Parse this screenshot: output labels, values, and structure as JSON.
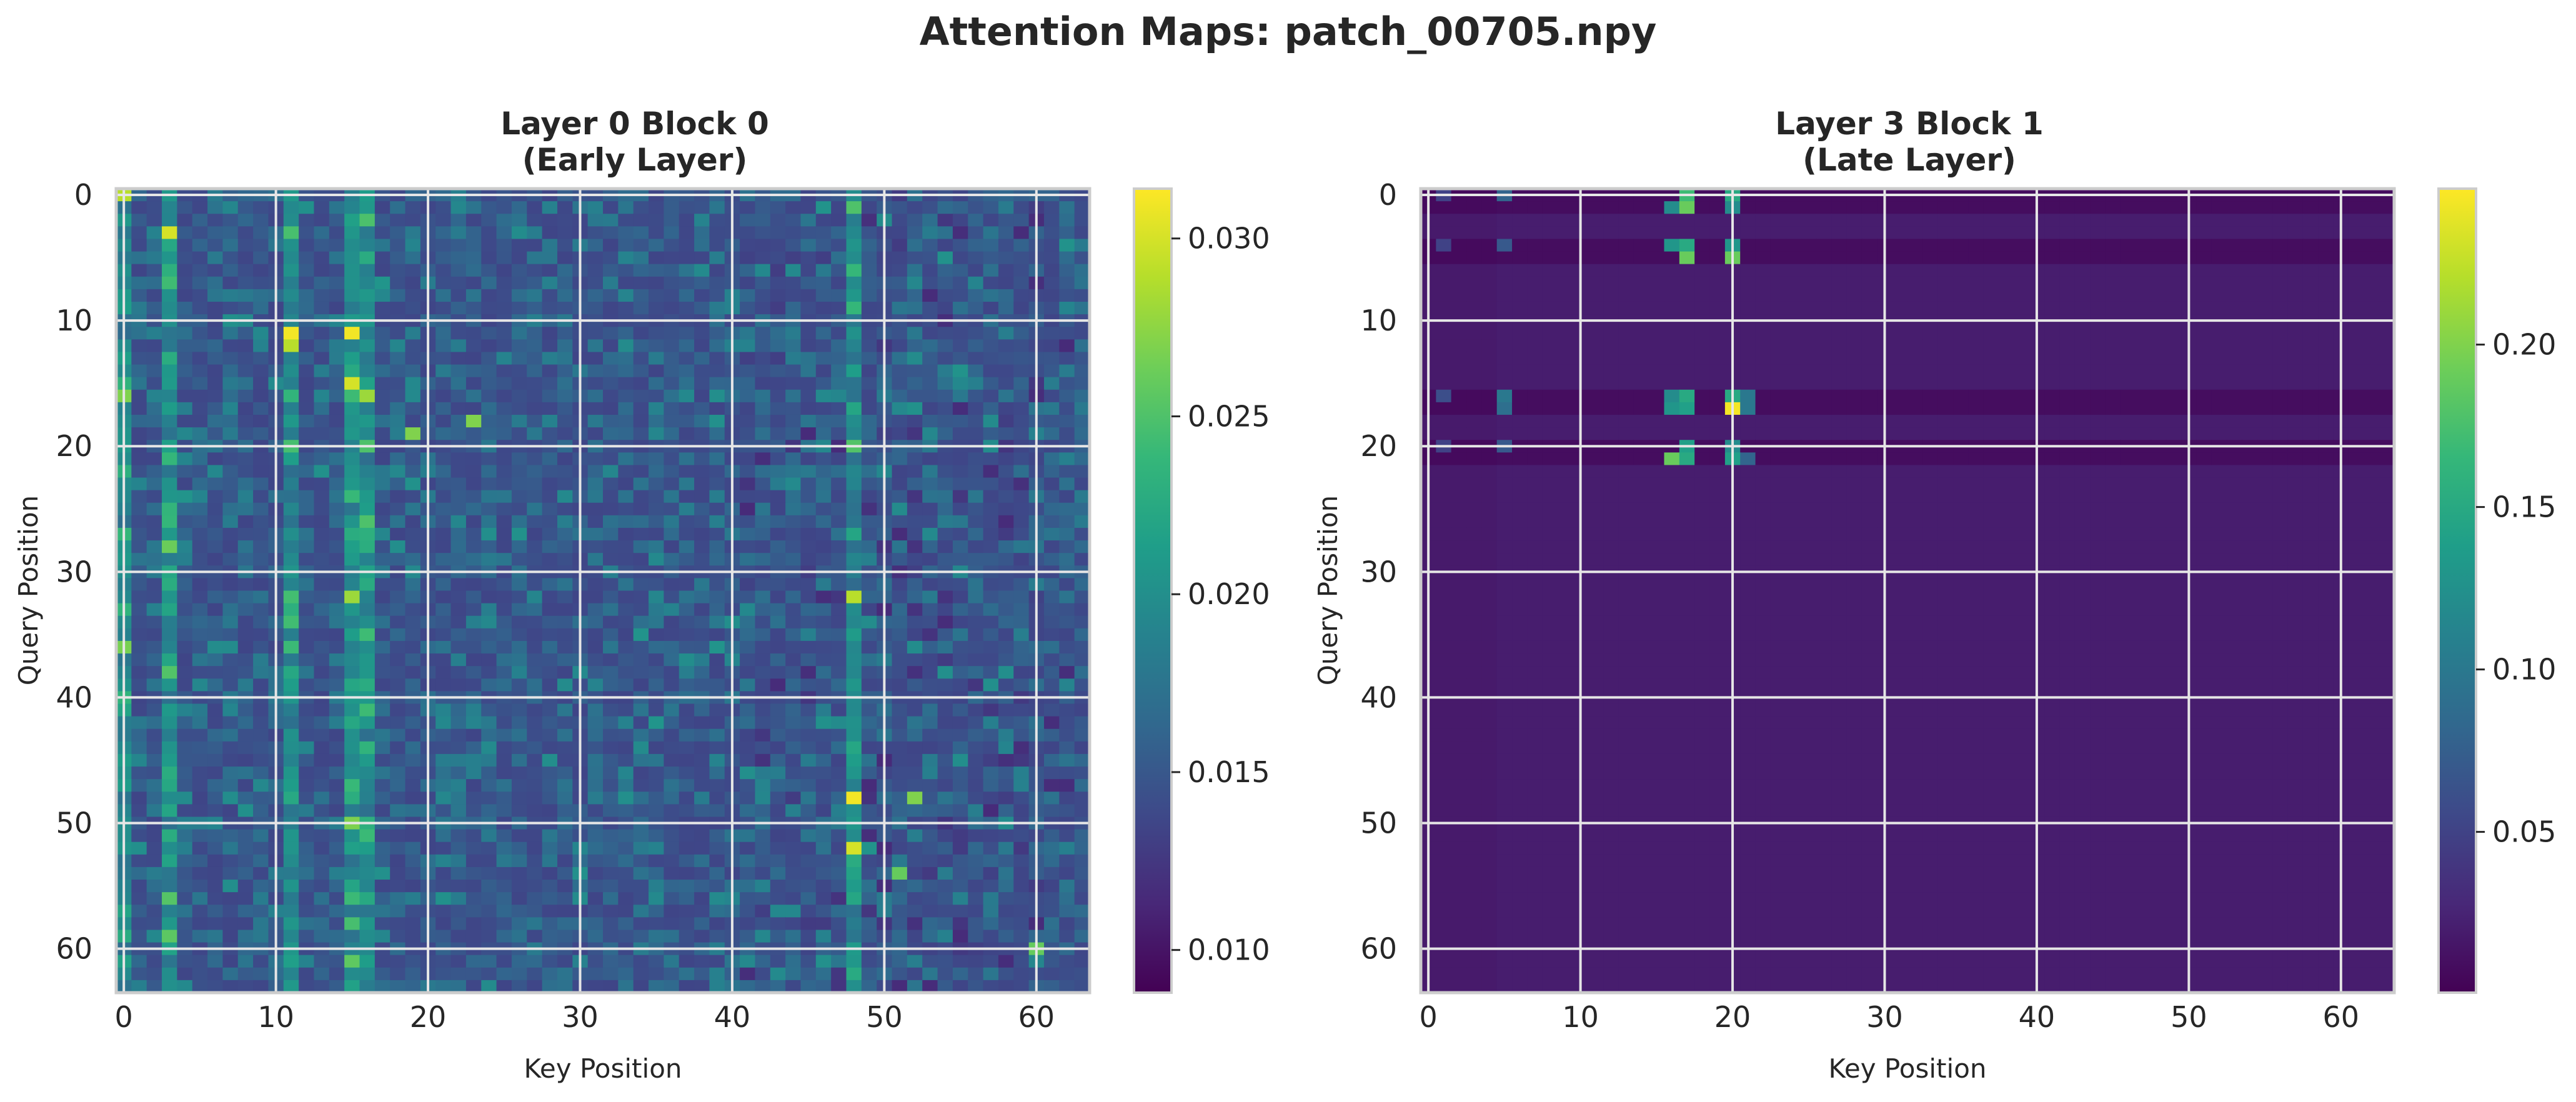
{
  "suptitle": "Attention Maps: patch_00705.npy",
  "colors": {
    "viridis": [
      "#440154",
      "#482878",
      "#3e4989",
      "#31688e",
      "#26828e",
      "#1f9e89",
      "#35b779",
      "#6ece58",
      "#b5de2b",
      "#fde725"
    ],
    "grid": "#e6e6e6",
    "frame": "#cccccc",
    "text": "#262626"
  },
  "chart_data": [
    {
      "type": "heatmap",
      "title_line1": "Layer 0 Block 0",
      "title_line2": "(Early Layer)",
      "xlabel": "Key Position",
      "ylabel": "Query Position",
      "size": 64,
      "xticks": [
        0,
        10,
        20,
        30,
        40,
        50,
        60
      ],
      "yticks": [
        0,
        10,
        20,
        30,
        40,
        50,
        60
      ],
      "vmin": 0.0088,
      "vmax": 0.0314,
      "colorbar_ticks": [
        0.01,
        0.015,
        0.02,
        0.025,
        0.03
      ],
      "colorbar_tick_labels": [
        "0.010",
        "0.015",
        "0.020",
        "0.025",
        "0.030"
      ],
      "base_range": [
        0.011,
        0.021
      ],
      "hot_columns": [
        0,
        3,
        11,
        15,
        16,
        48
      ],
      "bright_cells": [
        {
          "q": 0,
          "k": 0,
          "v": 0.029
        },
        {
          "q": 3,
          "k": 3,
          "v": 0.03
        },
        {
          "q": 11,
          "k": 11,
          "v": 0.031
        },
        {
          "q": 12,
          "k": 11,
          "v": 0.029
        },
        {
          "q": 11,
          "k": 15,
          "v": 0.031
        },
        {
          "q": 15,
          "k": 15,
          "v": 0.03
        },
        {
          "q": 16,
          "k": 16,
          "v": 0.028
        },
        {
          "q": 19,
          "k": 19,
          "v": 0.027
        },
        {
          "q": 18,
          "k": 23,
          "v": 0.027
        },
        {
          "q": 32,
          "k": 15,
          "v": 0.028
        },
        {
          "q": 32,
          "k": 48,
          "v": 0.029
        },
        {
          "q": 48,
          "k": 48,
          "v": 0.031
        },
        {
          "q": 52,
          "k": 48,
          "v": 0.03
        },
        {
          "q": 48,
          "k": 52,
          "v": 0.027
        },
        {
          "q": 54,
          "k": 51,
          "v": 0.026
        },
        {
          "q": 60,
          "k": 60,
          "v": 0.026
        },
        {
          "q": 16,
          "k": 0,
          "v": 0.027
        },
        {
          "q": 20,
          "k": 16,
          "v": 0.025
        }
      ]
    },
    {
      "type": "heatmap",
      "title_line1": "Layer 3 Block 1",
      "title_line2": "(Late Layer)",
      "xlabel": "Key Position",
      "ylabel": "Query Position",
      "size": 64,
      "xticks": [
        0,
        10,
        20,
        30,
        40,
        50,
        60
      ],
      "yticks": [
        0,
        10,
        20,
        30,
        40,
        50,
        60
      ],
      "vmin": 0.0005,
      "vmax": 0.248,
      "colorbar_ticks": [
        0.05,
        0.1,
        0.15,
        0.2
      ],
      "colorbar_tick_labels": [
        "0.05",
        "0.10",
        "0.15",
        "0.20"
      ],
      "background_value": 0.02,
      "dark_rows": [
        0,
        1,
        4,
        5,
        16,
        17,
        20,
        21
      ],
      "dark_row_value": 0.009,
      "bright_cells": [
        {
          "q": 0,
          "k": 17,
          "v": 0.17
        },
        {
          "q": 0,
          "k": 20,
          "v": 0.15
        },
        {
          "q": 1,
          "k": 16,
          "v": 0.12
        },
        {
          "q": 1,
          "k": 17,
          "v": 0.19
        },
        {
          "q": 1,
          "k": 20,
          "v": 0.12
        },
        {
          "q": 4,
          "k": 16,
          "v": 0.13
        },
        {
          "q": 4,
          "k": 17,
          "v": 0.15
        },
        {
          "q": 4,
          "k": 20,
          "v": 0.13
        },
        {
          "q": 5,
          "k": 17,
          "v": 0.19
        },
        {
          "q": 5,
          "k": 20,
          "v": 0.19
        },
        {
          "q": 16,
          "k": 16,
          "v": 0.12
        },
        {
          "q": 16,
          "k": 17,
          "v": 0.15
        },
        {
          "q": 16,
          "k": 20,
          "v": 0.15
        },
        {
          "q": 16,
          "k": 21,
          "v": 0.1
        },
        {
          "q": 17,
          "k": 16,
          "v": 0.13
        },
        {
          "q": 17,
          "k": 17,
          "v": 0.14
        },
        {
          "q": 17,
          "k": 20,
          "v": 0.245
        },
        {
          "q": 17,
          "k": 21,
          "v": 0.1
        },
        {
          "q": 20,
          "k": 17,
          "v": 0.14
        },
        {
          "q": 20,
          "k": 20,
          "v": 0.12
        },
        {
          "q": 21,
          "k": 16,
          "v": 0.19
        },
        {
          "q": 21,
          "k": 17,
          "v": 0.15
        },
        {
          "q": 21,
          "k": 20,
          "v": 0.14
        },
        {
          "q": 21,
          "k": 21,
          "v": 0.08
        },
        {
          "q": 0,
          "k": 1,
          "v": 0.05
        },
        {
          "q": 0,
          "k": 5,
          "v": 0.08
        },
        {
          "q": 4,
          "k": 1,
          "v": 0.05
        },
        {
          "q": 4,
          "k": 5,
          "v": 0.07
        },
        {
          "q": 16,
          "k": 1,
          "v": 0.06
        },
        {
          "q": 16,
          "k": 5,
          "v": 0.1
        },
        {
          "q": 17,
          "k": 5,
          "v": 0.09
        },
        {
          "q": 20,
          "k": 1,
          "v": 0.05
        },
        {
          "q": 20,
          "k": 5,
          "v": 0.07
        }
      ]
    }
  ]
}
